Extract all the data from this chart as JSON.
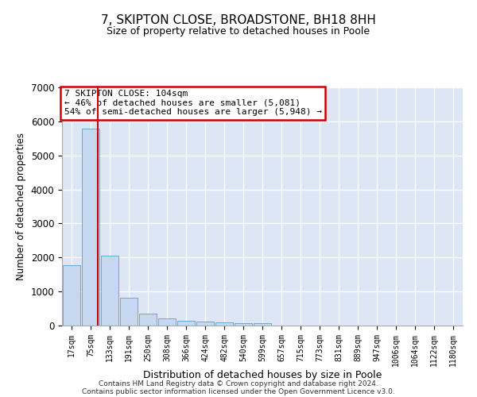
{
  "title": "7, SKIPTON CLOSE, BROADSTONE, BH18 8HH",
  "subtitle": "Size of property relative to detached houses in Poole",
  "xlabel": "Distribution of detached houses by size in Poole",
  "ylabel": "Number of detached properties",
  "bar_color": "#c5d8f0",
  "bar_edge_color": "#6aaad4",
  "background_color": "#dce6f5",
  "grid_color": "#ffffff",
  "categories": [
    "17sqm",
    "75sqm",
    "133sqm",
    "191sqm",
    "250sqm",
    "308sqm",
    "366sqm",
    "424sqm",
    "482sqm",
    "540sqm",
    "599sqm",
    "657sqm",
    "715sqm",
    "773sqm",
    "831sqm",
    "889sqm",
    "947sqm",
    "1006sqm",
    "1064sqm",
    "1122sqm",
    "1180sqm"
  ],
  "values": [
    1780,
    5780,
    2060,
    820,
    340,
    200,
    130,
    110,
    100,
    80,
    60,
    0,
    0,
    0,
    0,
    0,
    0,
    0,
    0,
    0,
    0
  ],
  "ylim": [
    0,
    7000
  ],
  "yticks": [
    0,
    1000,
    2000,
    3000,
    4000,
    5000,
    6000,
    7000
  ],
  "property_line_x": 1.38,
  "annotation_text": "7 SKIPTON CLOSE: 104sqm\n← 46% of detached houses are smaller (5,081)\n54% of semi-detached houses are larger (5,948) →",
  "annotation_box_color": "#ffffff",
  "annotation_box_edge": "#cc0000",
  "vline_color": "#cc0000",
  "footnote1": "Contains HM Land Registry data © Crown copyright and database right 2024.",
  "footnote2": "Contains public sector information licensed under the Open Government Licence v3.0."
}
